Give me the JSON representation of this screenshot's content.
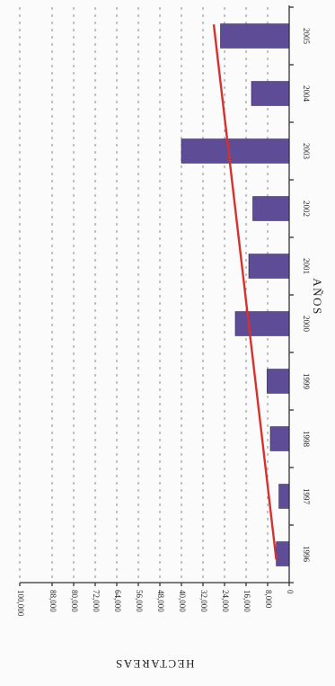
{
  "chart_data": {
    "type": "bar",
    "orientation": "horizontal, figure rotated 180°",
    "categories": [
      "1996",
      "1997",
      "1998",
      "1999",
      "2000",
      "2001",
      "2002",
      "2003",
      "2004",
      "2005"
    ],
    "values": [
      4800,
      3800,
      7000,
      8200,
      20000,
      15000,
      13500,
      40000,
      14000,
      25500
    ],
    "xlabel": "HECTAREAS",
    "ylabel": "AÑOS",
    "xlim": [
      0,
      100000
    ],
    "xticks": [
      0,
      8000,
      16000,
      24000,
      32000,
      40000,
      48000,
      56000,
      64000,
      72000,
      80000,
      88000,
      100000
    ],
    "xtick_labels": [
      "0",
      "8,000",
      "16,000",
      "24,000",
      "32,000",
      "40,000",
      "48,000",
      "56,000",
      "64,000",
      "72,000",
      "80,000",
      "88,000",
      "100,000"
    ],
    "trendline": {
      "color": "#d8302c",
      "start": {
        "x": "1996",
        "y": 4800
      },
      "end": {
        "x": "2005",
        "y": 28000
      }
    },
    "bar_color": "#5f4c96",
    "grid": true,
    "legend": "none"
  }
}
